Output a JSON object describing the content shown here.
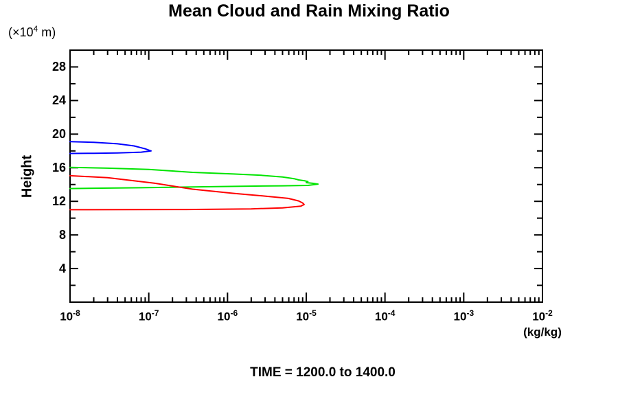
{
  "page": {
    "background": "#ffffff"
  },
  "chart_data": {
    "type": "line",
    "title": "Mean Cloud and Rain Mixing Ratio",
    "annotation": "TIME = 1200.0 to 1400.0",
    "grid": false,
    "legend": "none",
    "x_axis": {
      "label": "(kg/kg)",
      "scale": "log",
      "range": [
        1e-08,
        0.01
      ],
      "ticks": [
        {
          "value": 1e-08,
          "base": "10",
          "exp": "-8"
        },
        {
          "value": 1e-07,
          "base": "10",
          "exp": "-7"
        },
        {
          "value": 1e-06,
          "base": "10",
          "exp": "-6"
        },
        {
          "value": 1e-05,
          "base": "10",
          "exp": "-5"
        },
        {
          "value": 0.0001,
          "base": "10",
          "exp": "-4"
        },
        {
          "value": 0.001,
          "base": "10",
          "exp": "-3"
        },
        {
          "value": 0.01,
          "base": "10",
          "exp": "-2"
        }
      ]
    },
    "y_axis": {
      "label": "Height",
      "unit_pre": "(×10",
      "unit_exp": "4",
      "unit_post": " m)",
      "range": [
        0,
        30
      ],
      "major_ticks": [
        4,
        8,
        12,
        16,
        20,
        24,
        28
      ],
      "minor_step": 2
    },
    "axis_color": "#000000",
    "series": [
      {
        "name": "blue-curve",
        "color": "#0000ff",
        "points": [
          [
            1e-08,
            19.1
          ],
          [
            2e-08,
            19.02
          ],
          [
            4e-08,
            18.85
          ],
          [
            6.5e-08,
            18.6
          ],
          [
            9e-08,
            18.25
          ],
          [
            1.07e-07,
            18.0
          ],
          [
            8e-08,
            17.85
          ],
          [
            4e-08,
            17.76
          ],
          [
            2e-08,
            17.72
          ],
          [
            1e-08,
            17.7
          ]
        ]
      },
      {
        "name": "green-curve",
        "color": "#00e400",
        "points": [
          [
            1e-08,
            16.05
          ],
          [
            3e-08,
            15.95
          ],
          [
            1e-07,
            15.8
          ],
          [
            3.6e-07,
            15.45
          ],
          [
            1.2e-06,
            15.25
          ],
          [
            2.7e-06,
            15.1
          ],
          [
            5e-06,
            14.9
          ],
          [
            7e-06,
            14.7
          ],
          [
            8e-06,
            14.55
          ],
          [
            9.5e-06,
            14.45
          ],
          [
            1.05e-05,
            14.35
          ],
          [
            1e-05,
            14.22
          ],
          [
            1.2e-05,
            14.15
          ],
          [
            1.41e-05,
            14.05
          ],
          [
            1.05e-05,
            13.9
          ],
          [
            5e-06,
            13.85
          ],
          [
            1.5e-06,
            13.8
          ],
          [
            3.6e-07,
            13.72
          ],
          [
            8e-08,
            13.62
          ],
          [
            1e-08,
            13.52
          ]
        ]
      },
      {
        "name": "red-curve",
        "color": "#ff0000",
        "points": [
          [
            1e-08,
            15.05
          ],
          [
            3e-08,
            14.82
          ],
          [
            1.2e-07,
            14.15
          ],
          [
            3.6e-07,
            13.45
          ],
          [
            1.2e-06,
            12.95
          ],
          [
            3e-06,
            12.62
          ],
          [
            5.9e-06,
            12.35
          ],
          [
            8e-06,
            12.05
          ],
          [
            9e-06,
            11.8
          ],
          [
            9.4e-06,
            11.62
          ],
          [
            8.5e-06,
            11.42
          ],
          [
            5e-06,
            11.22
          ],
          [
            2e-06,
            11.1
          ],
          [
            3e-07,
            11.03
          ],
          [
            1e-08,
            11.0
          ]
        ]
      }
    ]
  }
}
